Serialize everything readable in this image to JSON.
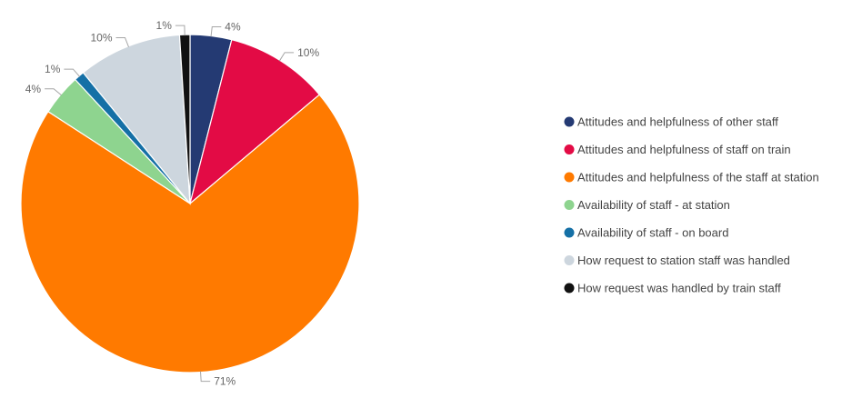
{
  "chart_data": {
    "type": "pie",
    "title": "",
    "legend_position": "right",
    "slices": [
      {
        "label": "Attitudes and helpfulness of other staff",
        "value": 4,
        "value_label": "4%",
        "color": "#243A73"
      },
      {
        "label": "Attitudes and helpfulness of staff on train",
        "value": 10,
        "value_label": "10%",
        "color": "#E30B45"
      },
      {
        "label": "Attitudes and helpfulness of the staff at station",
        "value": 71,
        "value_label": "71%",
        "color": "#FF7A00"
      },
      {
        "label": "Availability of staff - at station",
        "value": 4,
        "value_label": "4%",
        "color": "#8ED48F"
      },
      {
        "label": "Availability of staff - on board",
        "value": 1,
        "value_label": "1%",
        "color": "#1570A6"
      },
      {
        "label": "How request to station staff was handled",
        "value": 10,
        "value_label": "10%",
        "color": "#CDD6DE"
      },
      {
        "label": "How request was handled by train staff",
        "value": 1,
        "value_label": "1%",
        "color": "#111111"
      }
    ]
  }
}
